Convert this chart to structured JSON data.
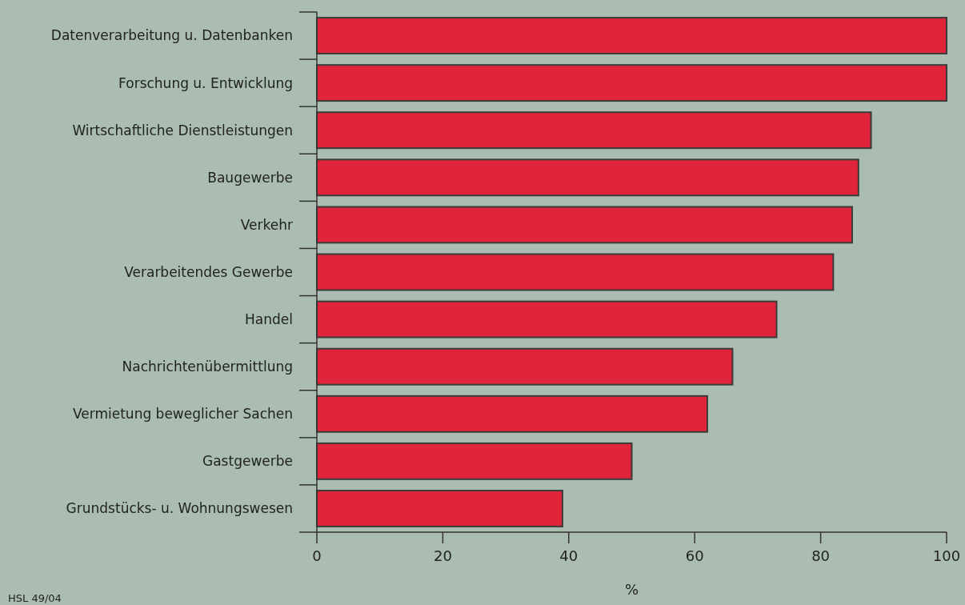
{
  "chart_data": {
    "type": "bar",
    "orientation": "horizontal",
    "xlabel": "%",
    "categories": [
      "Datenverarbeitung u. Datenbanken",
      "Forschung u. Entwicklung",
      "Wirtschaftliche Dienstleistungen",
      "Baugewerbe",
      "Verkehr",
      "Verarbeitendes Gewerbe",
      "Handel",
      "Nachrichtenübermittlung",
      "Vermietung beweglicher Sachen",
      "Gastgewerbe",
      "Grundstücks- u. Wohnungswesen"
    ],
    "values": [
      100,
      100,
      88,
      86,
      85,
      82,
      73,
      66,
      62,
      50,
      39
    ],
    "color": "#e0253a",
    "xlim": [
      0,
      100
    ],
    "xticks": [
      0,
      20,
      40,
      60,
      80,
      100
    ],
    "annotations": [
      "HSL 49/04"
    ]
  }
}
